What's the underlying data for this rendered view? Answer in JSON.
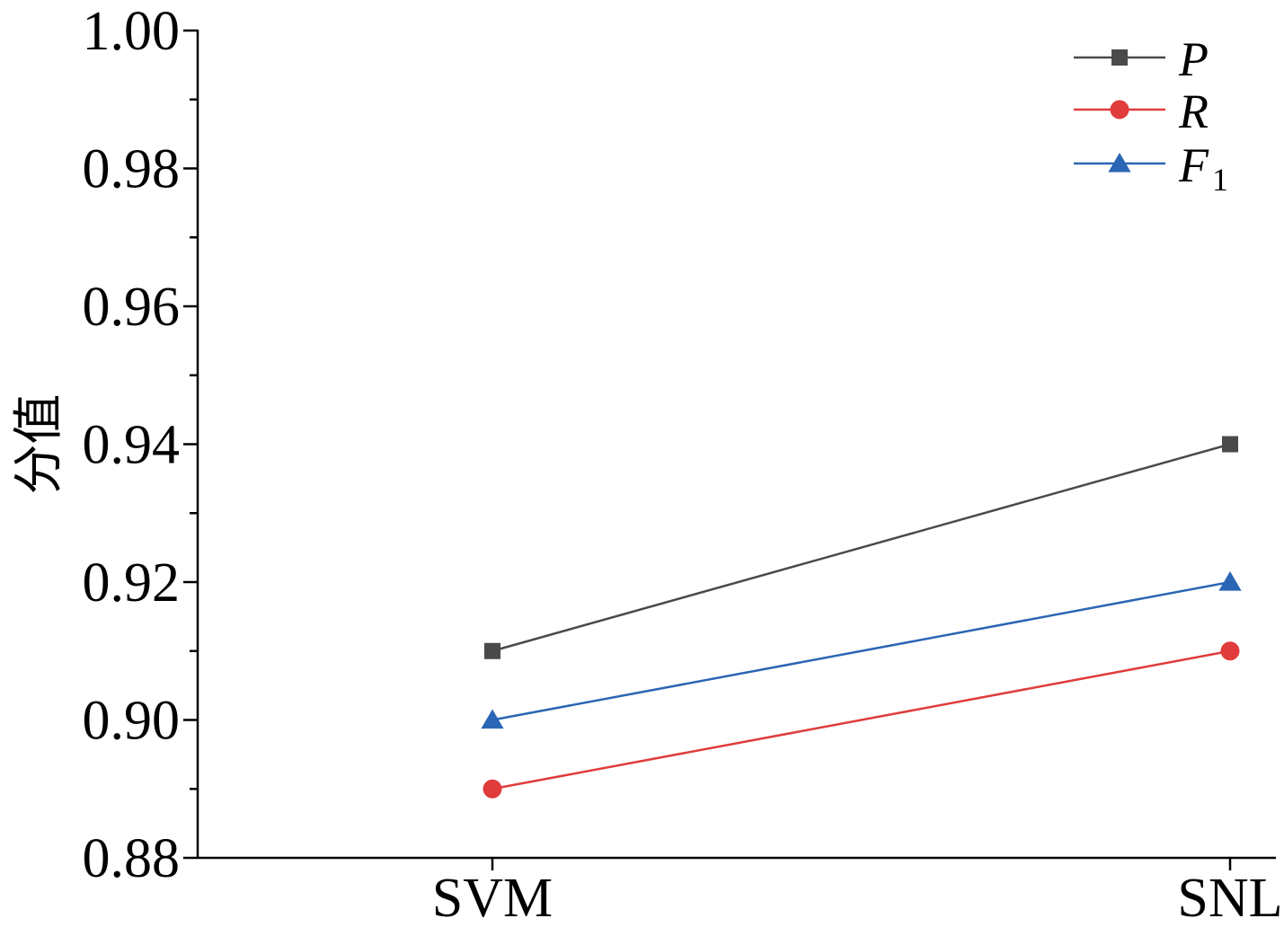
{
  "chart_data": {
    "type": "line",
    "categories": [
      "SVM",
      "SNL"
    ],
    "series": [
      {
        "name": "P",
        "values": [
          0.91,
          0.94
        ],
        "color": "#4a4a4a",
        "marker": "square"
      },
      {
        "name": "R",
        "values": [
          0.89,
          0.91
        ],
        "color": "#e03c3c",
        "marker": "circle"
      },
      {
        "name": "F",
        "name_sub": "1",
        "values": [
          0.9,
          0.92
        ],
        "color": "#2a66b4",
        "marker": "triangle"
      }
    ],
    "ylabel": "分值",
    "xlabel": "",
    "ylim": [
      0.88,
      1.0
    ],
    "yticks": [
      "0.88",
      "0.90",
      "0.92",
      "0.94",
      "0.96",
      "0.98",
      "1.00"
    ],
    "legend_position": "top-right",
    "grid": false
  }
}
